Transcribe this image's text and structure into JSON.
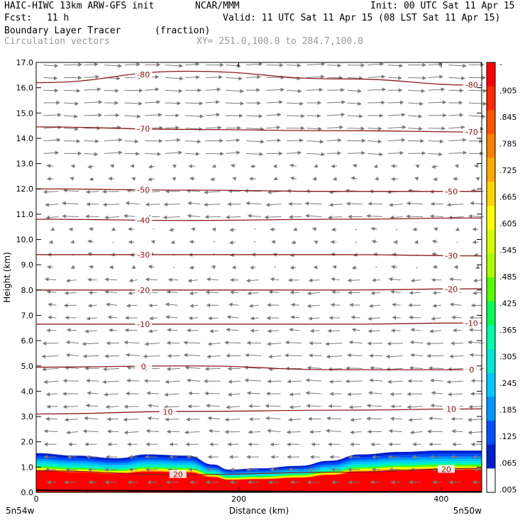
{
  "header": {
    "model": "HAIC-HIWC 13km ARW-GFS init",
    "org": "NCAR/MMM",
    "init": "Init: 00 UTC Sat 11 Apr 15",
    "fcst_label": "Fcst:",
    "fcst_value": "11 h",
    "valid": "Valid: 11 UTC Sat 11 Apr 15 (08 LST Sat 11 Apr 15)",
    "field": "Boundary Layer Tracer",
    "field_units": "(fraction)",
    "overlay": "Circulation vectors",
    "xy": "XY= 251.0,100.0 to 284.7,100.0"
  },
  "colors": {
    "contour": "#8b1a1a",
    "vector": "#7a7a7a"
  },
  "chart_data": {
    "type": "heatmap",
    "xlabel": "Distance (km)",
    "ylabel": "Height (km)",
    "xlim": [
      0,
      440
    ],
    "ylim": [
      0,
      17
    ],
    "x_ticks": [
      0,
      200,
      400
    ],
    "y_ticks": [
      "0.0",
      "1.0",
      "2.0",
      "3.0",
      "4.0",
      "5.0",
      "6.0",
      "7.0",
      "8.0",
      "9.0",
      "10.0",
      "11.0",
      "12.0",
      "13.0",
      "14.0",
      "15.0",
      "16.0",
      "17.0"
    ],
    "x_end_labels": {
      "left": "5n54w",
      "right": "5n50w"
    },
    "colorbar": {
      "labels": [
        "-",
        ".905",
        ".845",
        ".785",
        ".725",
        ".665",
        ".605",
        ".545",
        ".485",
        ".425",
        ".365",
        ".305",
        ".245",
        ".185",
        ".125",
        ".065",
        ".005"
      ],
      "colors": [
        "#ff0000",
        "#ff2a00",
        "#ff5500",
        "#ff7f00",
        "#ffaa00",
        "#ffd400",
        "#ffff00",
        "#d4ff00",
        "#aaff00",
        "#55ff00",
        "#00ff55",
        "#00ffaa",
        "#00e6d4",
        "#00c8ff",
        "#0096ff",
        "#0050ff",
        "#0020d0",
        "#ffffff"
      ]
    },
    "tracer_top_km": [
      {
        "x": 0,
        "z": 1.55
      },
      {
        "x": 40,
        "z": 1.45
      },
      {
        "x": 80,
        "z": 1.35
      },
      {
        "x": 110,
        "z": 1.5
      },
      {
        "x": 150,
        "z": 1.45
      },
      {
        "x": 175,
        "z": 1.1
      },
      {
        "x": 190,
        "z": 0.9
      },
      {
        "x": 220,
        "z": 0.95
      },
      {
        "x": 260,
        "z": 1.05
      },
      {
        "x": 290,
        "z": 1.25
      },
      {
        "x": 320,
        "z": 1.5
      },
      {
        "x": 360,
        "z": 1.6
      },
      {
        "x": 400,
        "z": 1.65
      },
      {
        "x": 440,
        "z": 1.65
      }
    ],
    "temperature_contours": [
      {
        "label": "-80",
        "z": [
          16.2,
          16.65,
          16.35,
          16.1
        ],
        "label_x": [
          106,
          430
        ]
      },
      {
        "label": "-70",
        "z": [
          14.45,
          14.35,
          14.3,
          14.25
        ],
        "label_x": [
          106,
          430
        ]
      },
      {
        "label": "-50",
        "z": [
          12.0,
          11.95,
          11.9,
          11.9
        ],
        "label_x": [
          106,
          410
        ]
      },
      {
        "label": "-40",
        "z": [
          10.8,
          10.75,
          10.8,
          10.85
        ],
        "label_x": [
          106
        ]
      },
      {
        "label": "-30",
        "z": [
          9.4,
          9.4,
          9.4,
          9.35
        ],
        "label_x": [
          106,
          410
        ]
      },
      {
        "label": "-20",
        "z": [
          8.0,
          8.0,
          8.0,
          8.05
        ],
        "label_x": [
          106,
          410
        ]
      },
      {
        "label": "-10",
        "z": [
          6.65,
          6.65,
          6.65,
          6.7
        ],
        "label_x": [
          106,
          430
        ]
      },
      {
        "label": "0",
        "z": [
          4.95,
          5.0,
          4.85,
          4.85
        ],
        "label_x": [
          106,
          430
        ]
      },
      {
        "label": "10",
        "z": [
          3.1,
          3.2,
          3.25,
          3.3
        ],
        "label_x": [
          130,
          410
        ]
      },
      {
        "label": "20",
        "z": [
          0.85,
          0.7,
          0.8,
          0.95
        ],
        "label_x": [
          140,
          405
        ]
      }
    ]
  }
}
